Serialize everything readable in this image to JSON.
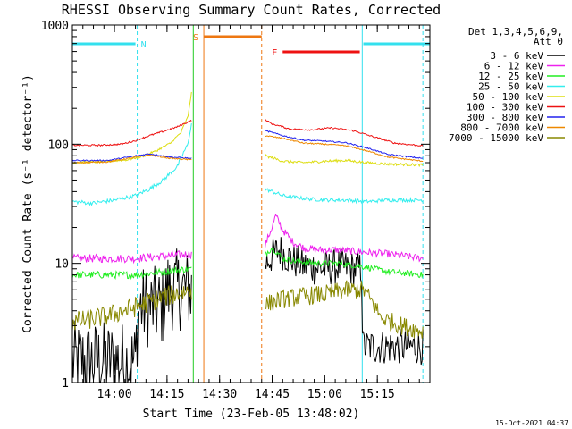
{
  "chart_data": {
    "type": "line",
    "title": "RHESSI Observing Summary Count Rates, Corrected",
    "xlabel": "Start Time (23-Feb-05 13:48:02)",
    "ylabel": "Corrected Count Rate (s⁻¹ detector⁻¹)",
    "yscale": "log",
    "ylim": [
      1,
      1000
    ],
    "xlim_minutes": [
      0,
      102
    ],
    "x_ticks": [
      {
        "m": 12,
        "label": "14:00"
      },
      {
        "m": 27,
        "label": "14:15"
      },
      {
        "m": 42,
        "label": "14:30"
      },
      {
        "m": 57,
        "label": "14:45"
      },
      {
        "m": 72,
        "label": "15:00"
      },
      {
        "m": 87,
        "label": "15:15"
      }
    ],
    "y_ticks": [
      {
        "v": 1,
        "label": "1"
      },
      {
        "v": 10,
        "label": "10"
      },
      {
        "v": 100,
        "label": "100"
      },
      {
        "v": 1000,
        "label": "1000"
      }
    ],
    "legend_header": [
      "Det 1,3,4,5,6,9,",
      "Att 0"
    ],
    "timestamp": "15-Oct-2021 04:37",
    "flags": [
      {
        "label": "N",
        "color": "#33e0ee",
        "bars": [
          [
            0,
            18
          ],
          [
            83,
            102
          ]
        ]
      },
      {
        "label": "S",
        "color": "#ee7711",
        "bars": [
          [
            37.5,
            54
          ]
        ]
      },
      {
        "label": "F",
        "color": "#ee1111",
        "bars": [
          [
            60,
            82
          ]
        ]
      }
    ],
    "markers": [
      {
        "m": 18.5,
        "color": "#33e0ee",
        "style": "dash"
      },
      {
        "m": 34.5,
        "color": "#22cc22",
        "style": "solid"
      },
      {
        "m": 37.5,
        "color": "#ee7711",
        "style": "solid"
      },
      {
        "m": 54.0,
        "color": "#ee7711",
        "style": "dash"
      },
      {
        "m": 82.7,
        "color": "#33e0ee",
        "style": "solid"
      },
      {
        "m": 100.0,
        "color": "#33e0ee",
        "style": "dash"
      }
    ],
    "series": [
      {
        "name": "3 - 6 keV",
        "color": "#000000",
        "segments": [
          {
            "points": [
              [
                0,
                1.5
              ],
              [
                18,
                1.5
              ],
              [
                19,
                4.3
              ],
              [
                26,
                4.3
              ],
              [
                27,
                6.0
              ],
              [
                34,
                6.0
              ]
            ],
            "noise": 0.8
          },
          {
            "points": [
              [
                55,
                10.0
              ],
              [
                59,
                13.0
              ],
              [
                62,
                11.0
              ],
              [
                66,
                9.5
              ],
              [
                72,
                9.0
              ],
              [
                76,
                9.5
              ],
              [
                80,
                9.0
              ],
              [
                82.5,
                9.0
              ],
              [
                82.8,
                2.0
              ],
              [
                100,
                2.0
              ]
            ],
            "noise": 0.35
          }
        ]
      },
      {
        "name": "6 - 12 keV",
        "color": "#ee22ee",
        "segments": [
          {
            "points": [
              [
                0,
                11.0
              ],
              [
                10,
                11.0
              ],
              [
                18,
                11.0
              ],
              [
                26,
                11.5
              ],
              [
                34,
                12.0
              ]
            ],
            "noise": 0.08
          },
          {
            "points": [
              [
                55,
                14.0
              ],
              [
                57,
                20.0
              ],
              [
                58,
                25.0
              ],
              [
                60,
                19.0
              ],
              [
                63,
                15.0
              ],
              [
                66,
                13.5
              ],
              [
                70,
                13.0
              ],
              [
                75,
                13.0
              ],
              [
                82,
                12.5
              ],
              [
                90,
                12.0
              ],
              [
                100,
                11.0
              ]
            ],
            "noise": 0.07
          }
        ]
      },
      {
        "name": "12 - 25 keV",
        "color": "#22ee22",
        "segments": [
          {
            "points": [
              [
                0,
                8.0
              ],
              [
                10,
                8.0
              ],
              [
                18,
                8.0
              ],
              [
                26,
                8.5
              ],
              [
                34,
                9.0
              ]
            ],
            "noise": 0.07
          },
          {
            "points": [
              [
                55,
                12.0
              ],
              [
                57,
                13.5
              ],
              [
                60,
                11.0
              ],
              [
                63,
                10.5
              ],
              [
                70,
                10.0
              ],
              [
                76,
                10.0
              ],
              [
                82,
                9.5
              ],
              [
                90,
                8.5
              ],
              [
                100,
                8.0
              ]
            ],
            "noise": 0.06
          }
        ]
      },
      {
        "name": "25 - 50 keV",
        "color": "#33eeee",
        "segments": [
          {
            "points": [
              [
                0,
                33.0
              ],
              [
                6,
                32.0
              ],
              [
                12,
                34.0
              ],
              [
                18,
                37.0
              ],
              [
                22,
                42.0
              ],
              [
                26,
                50.0
              ],
              [
                30,
                65.0
              ],
              [
                33,
                100.0
              ],
              [
                34,
                150.0
              ]
            ],
            "noise": 0.04
          },
          {
            "points": [
              [
                55,
                42.0
              ],
              [
                60,
                37.0
              ],
              [
                66,
                35.0
              ],
              [
                72,
                34.0
              ],
              [
                78,
                34.0
              ],
              [
                84,
                33.0
              ],
              [
                90,
                34.0
              ],
              [
                100,
                34.0
              ]
            ],
            "noise": 0.035
          }
        ]
      },
      {
        "name": "50 - 100 keV",
        "color": "#dddd11",
        "segments": [
          {
            "points": [
              [
                0,
                70.0
              ],
              [
                8,
                71.0
              ],
              [
                16,
                74.0
              ],
              [
                20,
                79.0
              ],
              [
                24,
                88.0
              ],
              [
                28,
                102.0
              ],
              [
                31,
                125.0
              ],
              [
                33,
                170.0
              ],
              [
                34,
                270.0
              ]
            ],
            "noise": 0.02
          },
          {
            "points": [
              [
                55,
                80.0
              ],
              [
                60,
                72.0
              ],
              [
                66,
                70.0
              ],
              [
                72,
                72.0
              ],
              [
                78,
                73.0
              ],
              [
                84,
                70.0
              ],
              [
                90,
                68.0
              ],
              [
                100,
                67.0
              ]
            ],
            "noise": 0.025
          }
        ]
      },
      {
        "name": "100 - 300 keV",
        "color": "#ee1111",
        "segments": [
          {
            "points": [
              [
                0,
                98.0
              ],
              [
                8,
                98.0
              ],
              [
                14,
                100.0
              ],
              [
                18,
                107.0
              ],
              [
                22,
                118.0
              ],
              [
                26,
                128.0
              ],
              [
                30,
                140.0
              ],
              [
                34,
                158.0
              ]
            ],
            "noise": 0.015
          },
          {
            "points": [
              [
                55,
                160.0
              ],
              [
                57,
                148.0
              ],
              [
                62,
                134.0
              ],
              [
                68,
                132.0
              ],
              [
                74,
                137.0
              ],
              [
                80,
                130.0
              ],
              [
                86,
                115.0
              ],
              [
                92,
                102.0
              ],
              [
                100,
                97.0
              ]
            ],
            "noise": 0.015
          }
        ]
      },
      {
        "name": "300 - 800 keV",
        "color": "#2222ee",
        "segments": [
          {
            "points": [
              [
                0,
                73.0
              ],
              [
                10,
                73.0
              ],
              [
                16,
                78.0
              ],
              [
                22,
                83.0
              ],
              [
                28,
                78.0
              ],
              [
                34,
                76.0
              ]
            ],
            "noise": 0.012
          },
          {
            "points": [
              [
                55,
                130.0
              ],
              [
                60,
                118.0
              ],
              [
                66,
                108.0
              ],
              [
                72,
                106.0
              ],
              [
                78,
                103.0
              ],
              [
                84,
                93.0
              ],
              [
                90,
                82.0
              ],
              [
                100,
                76.0
              ]
            ],
            "noise": 0.012
          }
        ]
      },
      {
        "name": "800 - 7000 keV",
        "color": "#ee8800",
        "segments": [
          {
            "points": [
              [
                0,
                70.0
              ],
              [
                10,
                71.0
              ],
              [
                16,
                76.0
              ],
              [
                22,
                81.0
              ],
              [
                28,
                76.0
              ],
              [
                34,
                74.0
              ]
            ],
            "noise": 0.012
          },
          {
            "points": [
              [
                55,
                118.0
              ],
              [
                60,
                112.0
              ],
              [
                66,
                102.0
              ],
              [
                72,
                100.0
              ],
              [
                78,
                97.0
              ],
              [
                84,
                88.0
              ],
              [
                90,
                78.0
              ],
              [
                100,
                72.0
              ]
            ],
            "noise": 0.012
          }
        ]
      },
      {
        "name": "7000 - 15000 keV",
        "color": "#888800",
        "segments": [
          {
            "points": [
              [
                0,
                3.2
              ],
              [
                10,
                3.6
              ],
              [
                18,
                4.3
              ],
              [
                26,
                5.2
              ],
              [
                34,
                6.0
              ]
            ],
            "noise": 0.2
          },
          {
            "points": [
              [
                55,
                4.5
              ],
              [
                60,
                5.0
              ],
              [
                66,
                5.3
              ],
              [
                72,
                5.5
              ],
              [
                78,
                6.0
              ],
              [
                83,
                6.0
              ],
              [
                88,
                3.5
              ],
              [
                94,
                3.0
              ],
              [
                100,
                2.7
              ]
            ],
            "noise": 0.18
          }
        ]
      }
    ]
  }
}
